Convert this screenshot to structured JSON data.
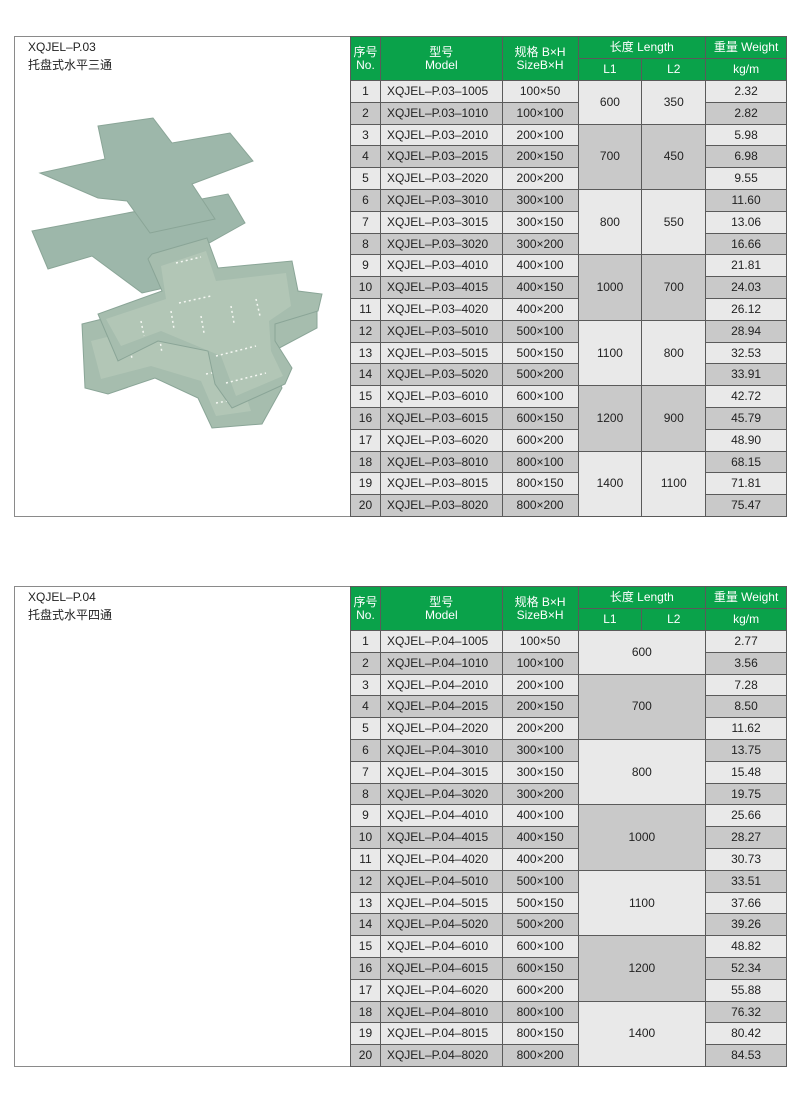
{
  "header_labels": {
    "no_cn": "序号",
    "no_en": "No.",
    "model_cn": "型号",
    "model_en": "Model",
    "size_cn": "规格 B×H",
    "size_en": "SizeB×H",
    "length": "长度 Length",
    "l1": "L1",
    "l2": "L2",
    "weight": "重量 Weight",
    "weight_unit": "kg/m"
  },
  "colors": {
    "header_green": "#0aa24a",
    "row_light": "#e9e9e9",
    "row_dark": "#c9c9c9",
    "product": "#9db7aa"
  },
  "panels": [
    {
      "code": "XQJEL–P.03",
      "name": "托盘式水平三通",
      "image": "horizontal-tee-tray-with-cover",
      "has_l2": true,
      "groups": [
        {
          "l1": "600",
          "l2": "350",
          "count": 2
        },
        {
          "l1": "700",
          "l2": "450",
          "count": 3
        },
        {
          "l1": "800",
          "l2": "550",
          "count": 3
        },
        {
          "l1": "1000",
          "l2": "700",
          "count": 3
        },
        {
          "l1": "1100",
          "l2": "800",
          "count": 3
        },
        {
          "l1": "1200",
          "l2": "900",
          "count": 3
        },
        {
          "l1": "1400",
          "l2": "1100",
          "count": 3
        }
      ],
      "rows": [
        {
          "no": "1",
          "model": "XQJEL–P.03–1005",
          "size": "100×50",
          "weight": "2.32"
        },
        {
          "no": "2",
          "model": "XQJEL–P.03–1010",
          "size": "100×100",
          "weight": "2.82"
        },
        {
          "no": "3",
          "model": "XQJEL–P.03–2010",
          "size": "200×100",
          "weight": "5.98"
        },
        {
          "no": "4",
          "model": "XQJEL–P.03–2015",
          "size": "200×150",
          "weight": "6.98"
        },
        {
          "no": "5",
          "model": "XQJEL–P.03–2020",
          "size": "200×200",
          "weight": "9.55"
        },
        {
          "no": "6",
          "model": "XQJEL–P.03–3010",
          "size": "300×100",
          "weight": "11.60"
        },
        {
          "no": "7",
          "model": "XQJEL–P.03–3015",
          "size": "300×150",
          "weight": "13.06"
        },
        {
          "no": "8",
          "model": "XQJEL–P.03–3020",
          "size": "300×200",
          "weight": "16.66"
        },
        {
          "no": "9",
          "model": "XQJEL–P.03–4010",
          "size": "400×100",
          "weight": "21.81"
        },
        {
          "no": "10",
          "model": "XQJEL–P.03–4015",
          "size": "400×150",
          "weight": "24.03"
        },
        {
          "no": "11",
          "model": "XQJEL–P.03–4020",
          "size": "400×200",
          "weight": "26.12"
        },
        {
          "no": "12",
          "model": "XQJEL–P.03–5010",
          "size": "500×100",
          "weight": "28.94"
        },
        {
          "no": "13",
          "model": "XQJEL–P.03–5015",
          "size": "500×150",
          "weight": "32.53"
        },
        {
          "no": "14",
          "model": "XQJEL–P.03–5020",
          "size": "500×200",
          "weight": "33.91"
        },
        {
          "no": "15",
          "model": "XQJEL–P.03–6010",
          "size": "600×100",
          "weight": "42.72"
        },
        {
          "no": "16",
          "model": "XQJEL–P.03–6015",
          "size": "600×150",
          "weight": "45.79"
        },
        {
          "no": "17",
          "model": "XQJEL–P.03–6020",
          "size": "600×200",
          "weight": "48.90"
        },
        {
          "no": "18",
          "model": "XQJEL–P.03–8010",
          "size": "800×100",
          "weight": "68.15"
        },
        {
          "no": "19",
          "model": "XQJEL–P.03–8015",
          "size": "800×150",
          "weight": "71.81"
        },
        {
          "no": "20",
          "model": "XQJEL–P.03–8020",
          "size": "800×200",
          "weight": "75.47"
        }
      ]
    },
    {
      "code": "XQJEL–P.04",
      "name": "托盘式水平四通",
      "image": "horizontal-cross-tray-with-cover",
      "has_l2": false,
      "groups": [
        {
          "l1": "600",
          "count": 2
        },
        {
          "l1": "700",
          "count": 3
        },
        {
          "l1": "800",
          "count": 3
        },
        {
          "l1": "1000",
          "count": 3
        },
        {
          "l1": "1100",
          "count": 3
        },
        {
          "l1": "1200",
          "count": 3
        },
        {
          "l1": "1400",
          "count": 3
        }
      ],
      "rows": [
        {
          "no": "1",
          "model": "XQJEL–P.04–1005",
          "size": "100×50",
          "weight": "2.77"
        },
        {
          "no": "2",
          "model": "XQJEL–P.04–1010",
          "size": "100×100",
          "weight": "3.56"
        },
        {
          "no": "3",
          "model": "XQJEL–P.04–2010",
          "size": "200×100",
          "weight": "7.28"
        },
        {
          "no": "4",
          "model": "XQJEL–P.04–2015",
          "size": "200×150",
          "weight": "8.50"
        },
        {
          "no": "5",
          "model": "XQJEL–P.04–2020",
          "size": "200×200",
          "weight": "11.62"
        },
        {
          "no": "6",
          "model": "XQJEL–P.04–3010",
          "size": "300×100",
          "weight": "13.75"
        },
        {
          "no": "7",
          "model": "XQJEL–P.04–3015",
          "size": "300×150",
          "weight": "15.48"
        },
        {
          "no": "8",
          "model": "XQJEL–P.04–3020",
          "size": "300×200",
          "weight": "19.75"
        },
        {
          "no": "9",
          "model": "XQJEL–P.04–4010",
          "size": "400×100",
          "weight": "25.66"
        },
        {
          "no": "10",
          "model": "XQJEL–P.04–4015",
          "size": "400×150",
          "weight": "28.27"
        },
        {
          "no": "11",
          "model": "XQJEL–P.04–4020",
          "size": "400×200",
          "weight": "30.73"
        },
        {
          "no": "12",
          "model": "XQJEL–P.04–5010",
          "size": "500×100",
          "weight": "33.51"
        },
        {
          "no": "13",
          "model": "XQJEL–P.04–5015",
          "size": "500×150",
          "weight": "37.66"
        },
        {
          "no": "14",
          "model": "XQJEL–P.04–5020",
          "size": "500×200",
          "weight": "39.26"
        },
        {
          "no": "15",
          "model": "XQJEL–P.04–6010",
          "size": "600×100",
          "weight": "48.82"
        },
        {
          "no": "16",
          "model": "XQJEL–P.04–6015",
          "size": "600×150",
          "weight": "52.34"
        },
        {
          "no": "17",
          "model": "XQJEL–P.04–6020",
          "size": "600×200",
          "weight": "55.88"
        },
        {
          "no": "18",
          "model": "XQJEL–P.04–8010",
          "size": "800×100",
          "weight": "76.32"
        },
        {
          "no": "19",
          "model": "XQJEL–P.04–8015",
          "size": "800×150",
          "weight": "80.42"
        },
        {
          "no": "20",
          "model": "XQJEL–P.04–8020",
          "size": "800×200",
          "weight": "84.53"
        }
      ]
    }
  ]
}
